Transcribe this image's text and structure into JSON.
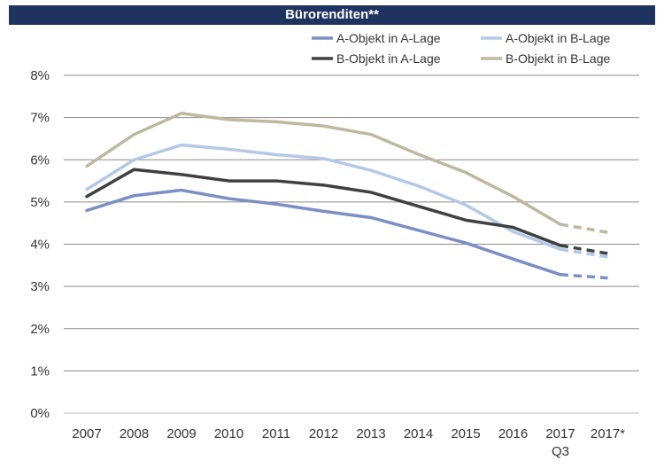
{
  "chart_data": {
    "type": "line",
    "title": "Bürorenditen**",
    "categories": [
      "2007",
      "2008",
      "2009",
      "2010",
      "2011",
      "2012",
      "2013",
      "2014",
      "2015",
      "2016",
      "2017",
      "2017*"
    ],
    "category_sublabels": {
      "2017": "Q3"
    },
    "y_ticks": [
      "0%",
      "1%",
      "2%",
      "3%",
      "4%",
      "5%",
      "6%",
      "7%",
      "8%"
    ],
    "ylim": [
      0,
      8
    ],
    "grid": true,
    "legend_position": "top-right",
    "forecast_category": "2017*",
    "series": [
      {
        "name": "A-Objekt in A-Lage",
        "color": "#7b8fc4",
        "values": [
          4.8,
          5.15,
          5.28,
          5.08,
          4.95,
          4.78,
          4.63,
          4.33,
          4.03,
          3.65,
          3.28,
          3.2
        ]
      },
      {
        "name": "A-Objekt in B-Lage",
        "color": "#b3c9e6",
        "values": [
          5.3,
          6.0,
          6.35,
          6.25,
          6.12,
          6.03,
          5.75,
          5.38,
          4.93,
          4.3,
          3.88,
          3.7
        ]
      },
      {
        "name": "B-Objekt in A-Lage",
        "color": "#404040",
        "values": [
          5.13,
          5.77,
          5.65,
          5.5,
          5.5,
          5.4,
          5.23,
          4.9,
          4.57,
          4.4,
          3.97,
          3.78
        ]
      },
      {
        "name": "B-Objekt in B-Lage",
        "color": "#bfb8a0",
        "values": [
          5.85,
          6.6,
          7.1,
          6.95,
          6.9,
          6.8,
          6.6,
          6.13,
          5.7,
          5.13,
          4.47,
          4.28
        ]
      }
    ]
  }
}
